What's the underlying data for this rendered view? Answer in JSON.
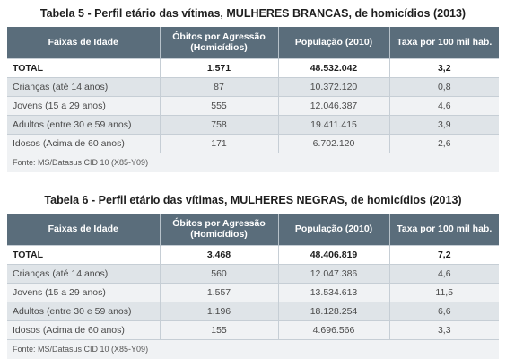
{
  "tables": [
    {
      "title": "Tabela 5 - Perfil etário das vítimas, MULHERES BRANCAS, de homicídios (2013)",
      "headers": [
        "Faixas de Idade",
        "Óbitos por Agressão (Homicídios)",
        "População (2010)",
        "Taxa por 100 mil hab."
      ],
      "rows": [
        [
          "TOTAL",
          "1.571",
          "48.532.042",
          "3,2"
        ],
        [
          "Crianças (até 14 anos)",
          "87",
          "10.372.120",
          "0,8"
        ],
        [
          "Jovens (15 a 29 anos)",
          "555",
          "12.046.387",
          "4,6"
        ],
        [
          "Adultos (entre 30 e 59 anos)",
          "758",
          "19.411.415",
          "3,9"
        ],
        [
          "Idosos (Acima de 60 anos)",
          "171",
          "6.702.120",
          "2,6"
        ]
      ],
      "source": "Fonte: MS/Datasus CID 10 (X85-Y09)"
    },
    {
      "title": "Tabela 6 - Perfil etário das vítimas, MULHERES NEGRAS, de homicídios (2013)",
      "headers": [
        "Faixas de Idade",
        "Óbitos por Agressão (Homicídios)",
        "População (2010)",
        "Taxa por 100 mil hab."
      ],
      "rows": [
        [
          "TOTAL",
          "3.468",
          "48.406.819",
          "7,2"
        ],
        [
          "Crianças (até 14 anos)",
          "560",
          "12.047.386",
          "4,6"
        ],
        [
          "Jovens (15 a 29 anos)",
          "1.557",
          "13.534.613",
          "11,5"
        ],
        [
          "Adultos (entre 30 e 59 anos)",
          "1.196",
          "18.128.254",
          "6,6"
        ],
        [
          "Idosos (Acima de 60 anos)",
          "155",
          "4.696.566",
          "3,3"
        ]
      ],
      "source": "Fonte: MS/Datasus CID 10 (X85-Y09)"
    }
  ]
}
